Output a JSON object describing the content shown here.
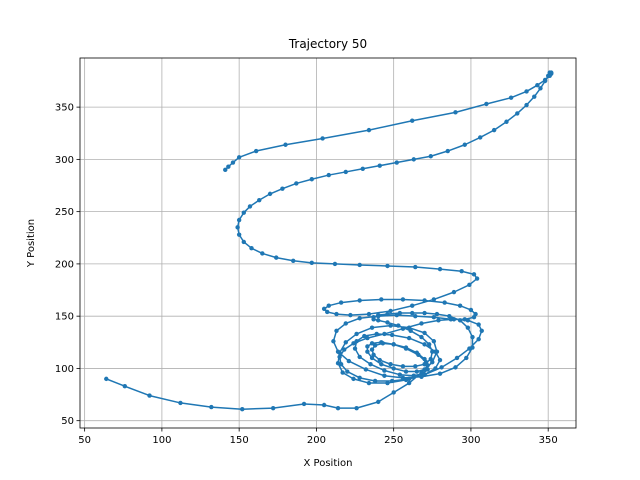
{
  "chart_data": {
    "type": "line",
    "title": "Trajectory 50",
    "xlabel": "X Position",
    "ylabel": "Y Position",
    "xlim": [
      47,
      368
    ],
    "ylim": [
      43,
      397
    ],
    "xticks": [
      50,
      100,
      150,
      200,
      250,
      300,
      350
    ],
    "yticks": [
      50,
      100,
      150,
      200,
      250,
      300,
      350
    ],
    "grid": true,
    "marker": "circle",
    "color": "#1f77b4",
    "series": [
      {
        "x": [
          64,
          76,
          92,
          112,
          132,
          152,
          172,
          192,
          205,
          214,
          226,
          240,
          250,
          260,
          268,
          275,
          278,
          276,
          270,
          260,
          248,
          236,
          226,
          219,
          215,
          214,
          217,
          224,
          234,
          246,
          258,
          270,
          281,
          291,
          299,
          305,
          307,
          305,
          298,
          289,
          279,
          268,
          256,
          244,
          233,
          224,
          218,
          215,
          216,
          220,
          228,
          238,
          249,
          260,
          270,
          277,
          280,
          277,
          270,
          260,
          249,
          239,
          231,
          226,
          225,
          228,
          235,
          244,
          254,
          263,
          269,
          272,
          271,
          266,
          258,
          250,
          242,
          236,
          233,
          233,
          236,
          242,
          250,
          258,
          265,
          270,
          272,
          270,
          265,
          258,
          250,
          243,
          238,
          236,
          237,
          241,
          248,
          256,
          264,
          270,
          274,
          275,
          273,
          268,
          261,
          253,
          246,
          240,
          237,
          237,
          240,
          246,
          254,
          262,
          270,
          278,
          286,
          293,
          298,
          301,
          301,
          297,
          290,
          280,
          268,
          256,
          244,
          232,
          221,
          214,
          211,
          213,
          219,
          228,
          240,
          252,
          264,
          276,
          287,
          296,
          302,
          303,
          300,
          293,
          283,
          270,
          256,
          242,
          228,
          216,
          208,
          205,
          207,
          213,
          222,
          234,
          248,
          262,
          276,
          289,
          299,
          304,
          302,
          294,
          280,
          264,
          246,
          228,
          212,
          197,
          185,
          174,
          165,
          158,
          153,
          150,
          149,
          150,
          153,
          157,
          163,
          170,
          178,
          187,
          197,
          208,
          219,
          230,
          241,
          252,
          263,
          274,
          285,
          296,
          306,
          315,
          323,
          330,
          336,
          341,
          345,
          348,
          350,
          351,
          352,
          352,
          351,
          348,
          343,
          336,
          326,
          310,
          290,
          262,
          234,
          204,
          180,
          161,
          150,
          146,
          143,
          141
        ],
        "y": [
          90,
          83,
          74,
          67,
          63,
          61,
          62,
          66,
          65,
          62,
          62,
          68,
          77,
          86,
          96,
          106,
          116,
          126,
          134,
          139,
          141,
          139,
          133,
          125,
          115,
          105,
          96,
          90,
          86,
          86,
          89,
          94,
          101,
          110,
          119,
          128,
          136,
          142,
          146,
          147,
          146,
          143,
          138,
          133,
          129,
          124,
          118,
          111,
          104,
          97,
          91,
          88,
          88,
          90,
          94,
          100,
          108,
          116,
          123,
          129,
          132,
          133,
          131,
          126,
          119,
          111,
          104,
          98,
          94,
          93,
          95,
          99,
          106,
          113,
          119,
          123,
          125,
          124,
          121,
          116,
          110,
          104,
          100,
          97,
          97,
          99,
          103,
          109,
          115,
          120,
          123,
          124,
          122,
          118,
          113,
          108,
          104,
          102,
          102,
          104,
          109,
          116,
          123,
          130,
          136,
          141,
          144,
          146,
          147,
          149,
          151,
          152,
          153,
          153,
          153,
          152,
          150,
          146,
          139,
          130,
          120,
          110,
          101,
          95,
          92,
          91,
          93,
          99,
          107,
          116,
          126,
          136,
          143,
          148,
          150,
          151,
          150,
          149,
          147,
          147,
          149,
          152,
          156,
          160,
          163,
          165,
          166,
          166,
          165,
          163,
          160,
          157,
          154,
          152,
          151,
          152,
          155,
          160,
          166,
          173,
          180,
          186,
          190,
          193,
          195,
          197,
          198,
          199,
          200,
          201,
          203,
          206,
          210,
          215,
          221,
          228,
          235,
          242,
          249,
          255,
          261,
          267,
          272,
          277,
          281,
          285,
          288,
          291,
          294,
          297,
          300,
          303,
          308,
          314,
          321,
          328,
          336,
          344,
          352,
          360,
          368,
          375,
          380,
          383,
          383,
          382,
          380,
          376,
          371,
          365,
          359,
          353,
          345,
          337,
          328,
          320,
          314,
          308,
          302,
          297,
          293,
          290
        ]
      }
    ]
  }
}
